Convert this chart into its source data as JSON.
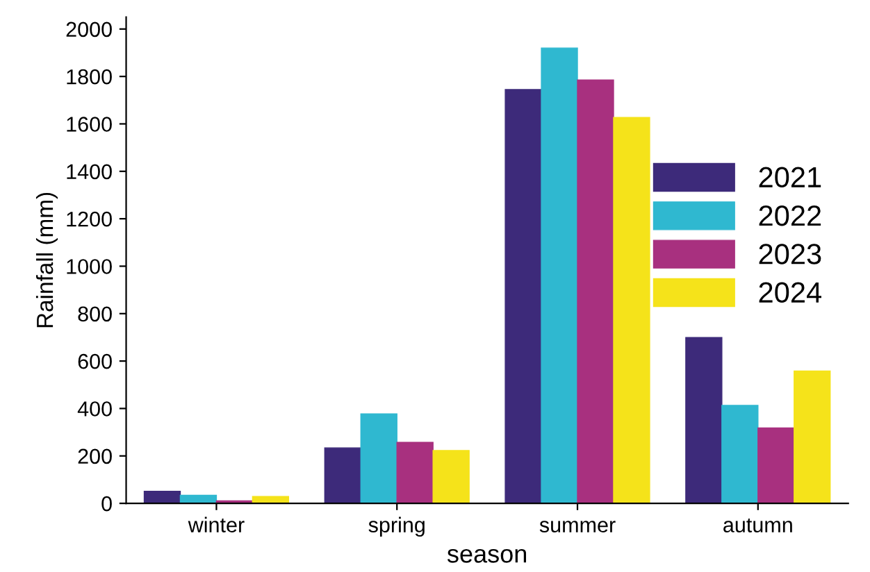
{
  "chart_data": {
    "type": "bar",
    "xlabel": "season",
    "ylabel": "Rainfall (mm)",
    "categories": [
      "winter",
      "spring",
      "summer",
      "autumn"
    ],
    "series": [
      {
        "name": "2021",
        "color": "#3d2a7a",
        "values": [
          51,
          234,
          1745,
          699
        ]
      },
      {
        "name": "2022",
        "color": "#2fb8d0",
        "values": [
          34,
          377,
          1920,
          413
        ]
      },
      {
        "name": "2023",
        "color": "#a8307f",
        "values": [
          11,
          257,
          1785,
          318
        ]
      },
      {
        "name": "2024",
        "color": "#f5e31a",
        "values": [
          29,
          223,
          1627,
          558
        ]
      }
    ],
    "ylim": [
      0,
      2050
    ],
    "yticks": [
      0,
      200,
      400,
      600,
      800,
      1000,
      1200,
      1400,
      1600,
      1800,
      2000
    ],
    "grid": false,
    "legend": "right"
  }
}
